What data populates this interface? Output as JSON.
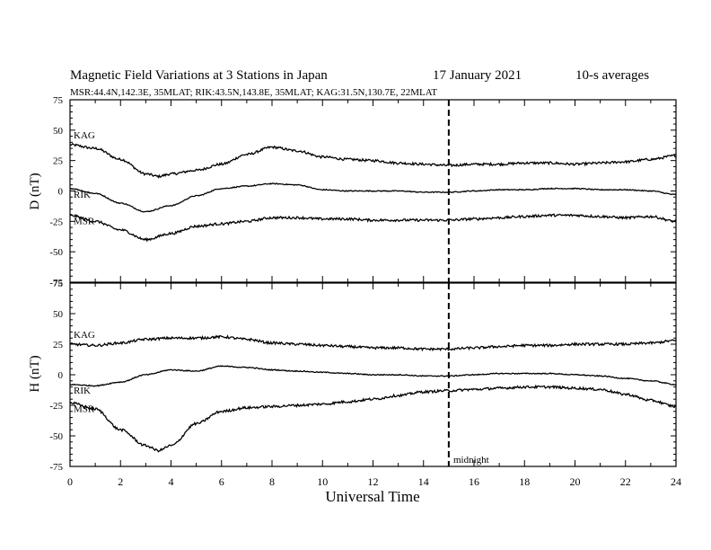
{
  "header": {
    "title": "Magnetic Field Variations at 3 Stations in Japan",
    "date": "17 January  2021",
    "averaging": "10-s averages",
    "stations": "MSR:44.4N,142.3E, 35MLAT;  RIK:43.5N,143.8E, 35MLAT;  KAG:31.5N,130.7E, 22MLAT"
  },
  "colors": {
    "line": "#000000",
    "background": "#ffffff"
  },
  "chart_data": [
    {
      "type": "line",
      "panel": "top",
      "ylabel": "D (nT)",
      "xlabel": "",
      "xlim": [
        0,
        24
      ],
      "ylim": [
        -75,
        75
      ],
      "y_ticks": [
        75,
        50,
        25,
        0,
        -25,
        -50,
        -75
      ],
      "x_ticks": [
        0,
        2,
        4,
        6,
        8,
        10,
        12,
        14,
        16,
        18,
        20,
        22,
        24
      ],
      "series": [
        {
          "name": "KAG",
          "x": [
            0,
            1,
            2,
            3,
            3.5,
            4,
            5,
            6,
            7,
            8,
            9,
            10,
            11,
            12,
            13,
            14,
            15,
            16,
            17,
            18,
            19,
            20,
            21,
            22,
            23,
            24
          ],
          "values": [
            38,
            35,
            26,
            14,
            12,
            14,
            17,
            22,
            30,
            36,
            33,
            28,
            26,
            25,
            23,
            22,
            21,
            22,
            22,
            23,
            23,
            22,
            23,
            24,
            26,
            29
          ]
        },
        {
          "name": "RIK",
          "x": [
            0,
            1,
            2,
            3,
            4,
            5,
            6,
            7,
            8,
            9,
            10,
            11,
            12,
            13,
            14,
            15,
            16,
            17,
            18,
            19,
            20,
            21,
            22,
            23,
            24
          ],
          "values": [
            2,
            -2,
            -10,
            -17,
            -12,
            -4,
            2,
            4,
            6,
            5,
            1,
            0,
            0,
            0,
            -1,
            -1,
            0,
            1,
            1,
            2,
            2,
            1,
            1,
            0,
            -3
          ]
        },
        {
          "name": "MSR",
          "x": [
            0,
            1,
            2,
            3,
            4,
            5,
            6,
            7,
            8,
            9,
            10,
            11,
            12,
            13,
            14,
            15,
            16,
            17,
            18,
            19,
            20,
            21,
            22,
            23,
            24
          ],
          "values": [
            -20,
            -25,
            -32,
            -40,
            -35,
            -29,
            -27,
            -25,
            -22,
            -22,
            -23,
            -23,
            -24,
            -24,
            -24,
            -24,
            -23,
            -22,
            -21,
            -20,
            -20,
            -21,
            -22,
            -21,
            -25
          ]
        }
      ],
      "annotations": [
        {
          "text": "",
          "x": 15,
          "style": "vertical dashed line"
        }
      ]
    },
    {
      "type": "line",
      "panel": "bottom",
      "ylabel": "H (nT)",
      "xlabel": "Universal Time",
      "xlim": [
        0,
        24
      ],
      "ylim": [
        -75,
        75
      ],
      "y_ticks": [
        75,
        50,
        25,
        0,
        -25,
        -50,
        -75
      ],
      "x_ticks": [
        0,
        2,
        4,
        6,
        8,
        10,
        12,
        14,
        16,
        18,
        20,
        22,
        24
      ],
      "tick_labels_x": [
        "0",
        "2",
        "4",
        "6",
        "8",
        "10",
        "12",
        "14",
        "16",
        "18",
        "20",
        "22",
        "24"
      ],
      "series": [
        {
          "name": "KAG",
          "x": [
            0,
            1,
            2,
            3,
            4,
            5,
            6,
            7,
            8,
            9,
            10,
            11,
            12,
            13,
            14,
            15,
            16,
            17,
            18,
            19,
            20,
            21,
            22,
            23,
            24
          ],
          "values": [
            25,
            24,
            26,
            29,
            30,
            30,
            31,
            29,
            26,
            25,
            24,
            23,
            22,
            22,
            21,
            21,
            22,
            23,
            24,
            24,
            25,
            25,
            25,
            26,
            28
          ]
        },
        {
          "name": "RIK",
          "x": [
            0,
            1,
            2,
            3,
            4,
            5,
            6,
            7,
            8,
            9,
            10,
            11,
            12,
            13,
            14,
            15,
            16,
            17,
            18,
            19,
            20,
            21,
            22,
            23,
            24
          ],
          "values": [
            -8,
            -9,
            -6,
            0,
            4,
            3,
            7,
            6,
            4,
            3,
            2,
            1,
            0,
            0,
            -1,
            -1,
            0,
            1,
            1,
            1,
            0,
            -1,
            -3,
            -5,
            -8
          ]
        },
        {
          "name": "MSR",
          "x": [
            0,
            1,
            2,
            3,
            3.5,
            4,
            5,
            6,
            7,
            8,
            9,
            10,
            11,
            12,
            13,
            14,
            15,
            16,
            17,
            18,
            19,
            20,
            21,
            22,
            23,
            24
          ],
          "values": [
            -23,
            -28,
            -45,
            -58,
            -62,
            -58,
            -40,
            -30,
            -27,
            -26,
            -25,
            -24,
            -22,
            -20,
            -17,
            -14,
            -13,
            -12,
            -11,
            -10,
            -10,
            -11,
            -12,
            -16,
            -21,
            -26
          ]
        }
      ],
      "annotations": [
        {
          "text": "midnight",
          "x": 15,
          "style": "vertical dashed line"
        }
      ]
    }
  ]
}
